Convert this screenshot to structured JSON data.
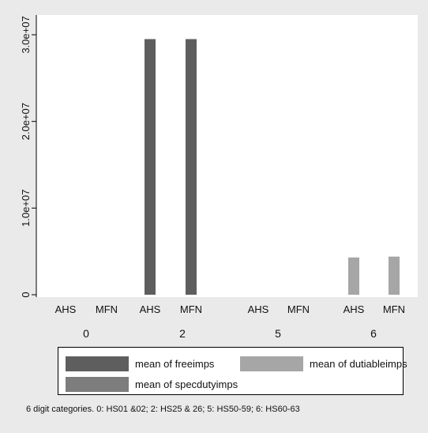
{
  "chart_data": {
    "type": "bar",
    "groups": [
      {
        "label": "0",
        "bars": [
          {
            "label": "AHS",
            "freeimps": 0,
            "specdutyimps": 0,
            "dutiableimps": 0
          },
          {
            "label": "MFN",
            "freeimps": 0,
            "specdutyimps": 0,
            "dutiableimps": 0
          }
        ]
      },
      {
        "label": "2",
        "bars": [
          {
            "label": "AHS",
            "freeimps": 29500000,
            "specdutyimps": 0,
            "dutiableimps": 0
          },
          {
            "label": "MFN",
            "freeimps": 29500000,
            "specdutyimps": 0,
            "dutiableimps": 0
          }
        ]
      },
      {
        "label": "5",
        "bars": [
          {
            "label": "AHS",
            "freeimps": 0,
            "specdutyimps": 0,
            "dutiableimps": 0
          },
          {
            "label": "MFN",
            "freeimps": 0,
            "specdutyimps": 0,
            "dutiableimps": 0
          }
        ]
      },
      {
        "label": "6",
        "bars": [
          {
            "label": "AHS",
            "freeimps": 0,
            "specdutyimps": 0,
            "dutiableimps": 4300000
          },
          {
            "label": "MFN",
            "freeimps": 0,
            "specdutyimps": 0,
            "dutiableimps": 4400000
          }
        ]
      }
    ],
    "series": [
      {
        "key": "freeimps",
        "name": "mean of freeimps",
        "color": "#5e5e5e"
      },
      {
        "key": "dutiableimps",
        "name": "mean of dutiableimps",
        "color": "#a6a6a6"
      },
      {
        "key": "specdutyimps",
        "name": "mean of specdutyimps",
        "color": "#7d7d7d"
      }
    ],
    "yticks": [
      0,
      10000000,
      20000000,
      30000000
    ],
    "ytick_labels": [
      "0",
      "1.0e+07",
      "2.0e+07",
      "3.0e+07"
    ],
    "ylim": [
      0,
      30000000
    ],
    "grid": false,
    "legend_position": "bottom",
    "note": "6 digit categories. 0: HS01 &02; 2: HS25 & 26; 5: HS50-59; 6: HS60-63"
  }
}
